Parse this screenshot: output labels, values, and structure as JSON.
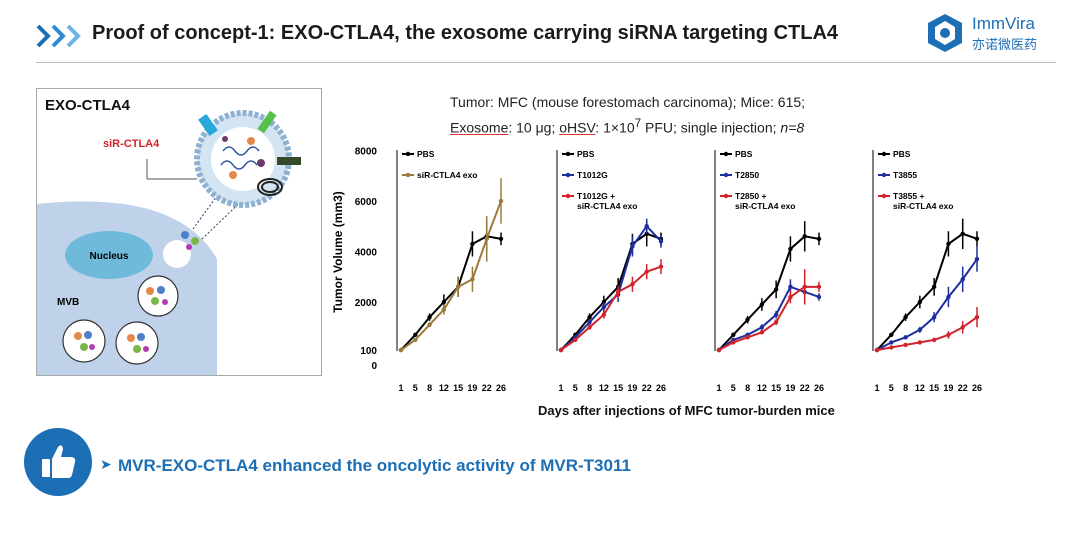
{
  "header": {
    "title": "Proof of concept-1: EXO-CTLA4, the exosome carrying siRNA targeting CTLA4",
    "logo_name": "ImmVira",
    "logo_cn": "亦诺微医药"
  },
  "diagram": {
    "title": "EXO-CTLA4",
    "sirna_label": "siR-CTLA4",
    "nucleus_label": "Nucleus",
    "mvb_label": "MVB"
  },
  "caption": {
    "line1": "Tumor: MFC (mouse forestomach carcinoma); Mice: 615;",
    "exosome_word": "Exosome",
    "line2_mid": ": 10 μg; ",
    "ohsv_word": "oHSV",
    "line2_dose": ": 1×10",
    "line2_exp": "7",
    "line2_rest": " PFU; single injection; ",
    "line2_n": "n=8"
  },
  "colors": {
    "black": "#000000",
    "gold": "#9a7a3a",
    "blue": "#1e2e9e",
    "red": "#d2232a",
    "accent": "#1c6fb5"
  },
  "chart_data": [
    {
      "type": "line",
      "ylabel": "Tumor Volume (mm3)",
      "ytick_labels": [
        "0",
        "100",
        "2000",
        "4000",
        "6000",
        "8000"
      ],
      "x": [
        1,
        5,
        8,
        12,
        15,
        19,
        22,
        26
      ],
      "xtick_labels": [
        "1",
        "5",
        "8",
        "12",
        "15",
        "19",
        "22",
        "26"
      ],
      "series": [
        {
          "name": "PBS",
          "color": "black",
          "values": [
            100,
            700,
            1400,
            2000,
            2600,
            4300,
            4600,
            4500
          ],
          "errors": [
            0,
            80,
            150,
            300,
            400,
            500,
            600,
            250
          ]
        },
        {
          "name": "siR-CTLA4 exo",
          "color": "gold",
          "values": [
            100,
            500,
            1100,
            1700,
            2600,
            2900,
            4500,
            6000
          ],
          "errors": [
            0,
            60,
            100,
            200,
            400,
            500,
            900,
            900
          ]
        }
      ]
    },
    {
      "type": "line",
      "x": [
        1,
        5,
        8,
        12,
        15,
        19,
        22,
        26
      ],
      "xtick_labels": [
        "1",
        "5",
        "8",
        "12",
        "15",
        "19",
        "22",
        "26"
      ],
      "series": [
        {
          "name": "PBS",
          "color": "black",
          "values": [
            100,
            700,
            1400,
            2000,
            2600,
            4300,
            4700,
            4500
          ],
          "errors": [
            0,
            80,
            150,
            250,
            350,
            400,
            500,
            250
          ]
        },
        {
          "name": "T1012G",
          "color": "blue",
          "values": [
            100,
            600,
            1200,
            1800,
            2300,
            4200,
            5000,
            4400
          ],
          "errors": [
            0,
            80,
            120,
            200,
            300,
            400,
            300,
            250
          ]
        },
        {
          "name": "T1012G + siR-CTLA4 exo",
          "color": "red",
          "values": [
            100,
            500,
            1000,
            1500,
            2400,
            2700,
            3200,
            3400
          ],
          "errors": [
            0,
            60,
            100,
            150,
            250,
            300,
            300,
            300
          ]
        }
      ]
    },
    {
      "type": "line",
      "x": [
        1,
        5,
        8,
        12,
        15,
        19,
        22,
        26
      ],
      "xtick_labels": [
        "1",
        "5",
        "8",
        "12",
        "15",
        "19",
        "22",
        "26"
      ],
      "series": [
        {
          "name": "PBS",
          "color": "black",
          "values": [
            100,
            700,
            1300,
            1900,
            2500,
            4100,
            4600,
            4500
          ],
          "errors": [
            0,
            80,
            150,
            250,
            350,
            500,
            600,
            250
          ]
        },
        {
          "name": "T2850",
          "color": "blue",
          "values": [
            100,
            500,
            700,
            1000,
            1500,
            2600,
            2400,
            2200
          ],
          "errors": [
            0,
            60,
            80,
            120,
            150,
            300,
            300,
            150
          ]
        },
        {
          "name": "T2850 + siR-CTLA4 exo",
          "color": "red",
          "values": [
            100,
            400,
            600,
            800,
            1200,
            2200,
            2600,
            2600
          ],
          "errors": [
            0,
            40,
            60,
            80,
            120,
            250,
            700,
            200
          ]
        }
      ]
    },
    {
      "type": "line",
      "x": [
        1,
        5,
        8,
        12,
        15,
        19,
        22,
        26
      ],
      "xtick_labels": [
        "1",
        "5",
        "8",
        "12",
        "15",
        "19",
        "22",
        "26"
      ],
      "series": [
        {
          "name": "PBS",
          "color": "black",
          "values": [
            100,
            700,
            1400,
            2000,
            2600,
            4300,
            4700,
            4500
          ],
          "errors": [
            0,
            80,
            150,
            250,
            350,
            500,
            600,
            300
          ]
        },
        {
          "name": "T3855",
          "color": "blue",
          "values": [
            100,
            400,
            600,
            900,
            1400,
            2200,
            2900,
            3700
          ],
          "errors": [
            0,
            60,
            80,
            120,
            200,
            400,
            500,
            500
          ]
        },
        {
          "name": "T3855 + siR-CTLA4 exo",
          "color": "red",
          "values": [
            100,
            200,
            300,
            400,
            500,
            700,
            1000,
            1400
          ],
          "errors": [
            0,
            40,
            50,
            60,
            80,
            150,
            250,
            400
          ]
        }
      ]
    }
  ],
  "x_axis_title": "Days after injections of MFC tumor-burden mice",
  "conclusion": {
    "arrow": "➤",
    "text": "MVR-EXO-CTLA4 enhanced the oncolytic activity of MVR-T3011"
  }
}
